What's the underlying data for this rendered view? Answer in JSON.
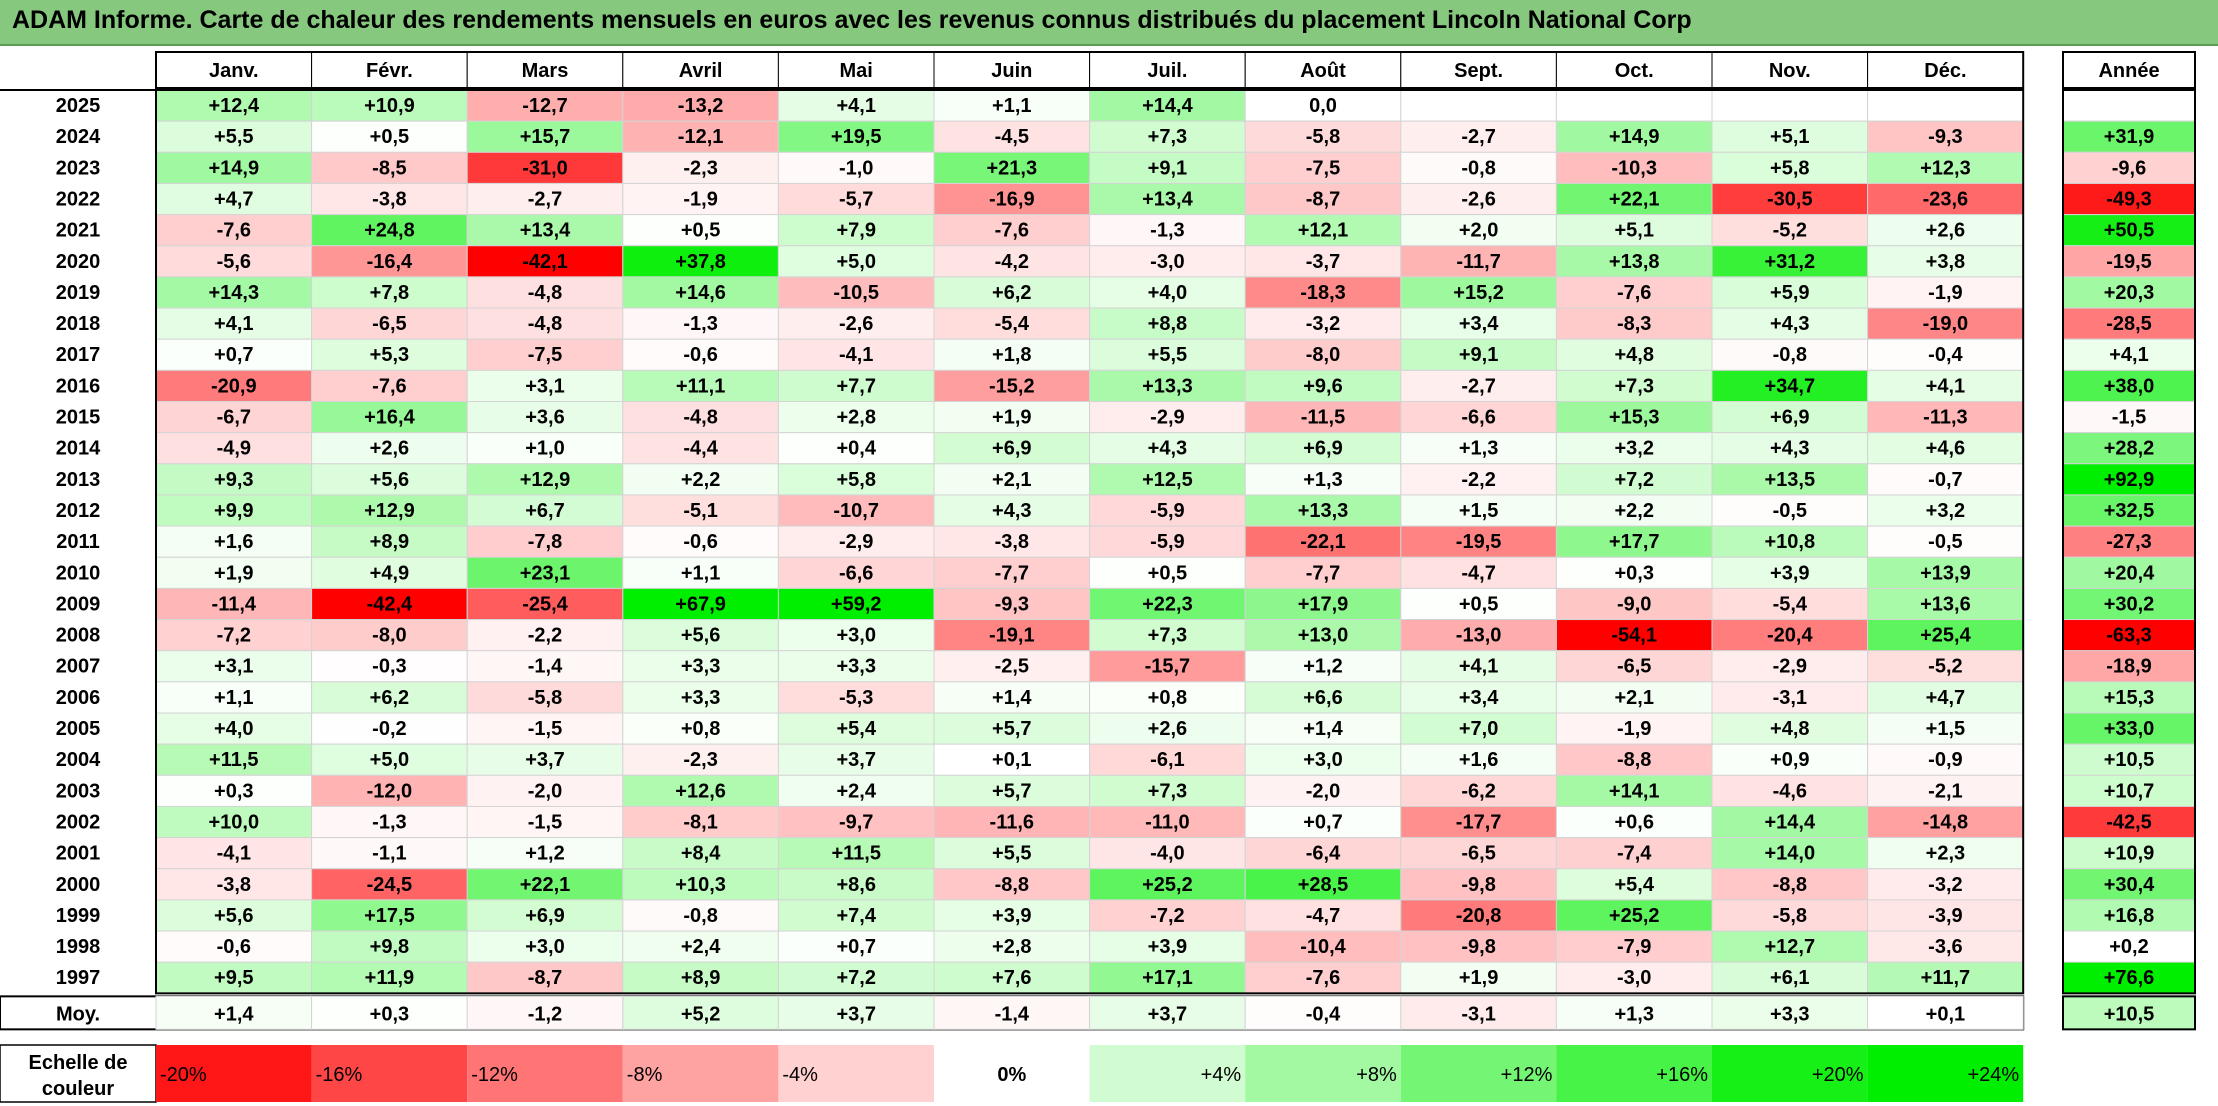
{
  "title": "ADAM Informe. Carte de chaleur des rendements mensuels en euros avec les revenus connus distribués du placement Lincoln National Corp",
  "colors": {
    "title_background": "#86c97e",
    "strong_negative": "#ff0000",
    "neutral": "#ffffff",
    "strong_positive": "#00ee00"
  },
  "chart_data": {
    "type": "heatmap",
    "months": [
      "Janv.",
      "Févr.",
      "Mars",
      "Avril",
      "Mai",
      "Juin",
      "Juil.",
      "Août",
      "Sept.",
      "Oct.",
      "Nov.",
      "Déc."
    ],
    "year_header": "Année",
    "average_label": "Moy.",
    "rows": [
      {
        "year": "2025",
        "values": [
          12.4,
          10.9,
          -12.7,
          -13.2,
          4.1,
          1.1,
          14.4,
          0.0,
          null,
          null,
          null,
          null
        ],
        "annual": null
      },
      {
        "year": "2024",
        "values": [
          5.5,
          0.5,
          15.7,
          -12.1,
          19.5,
          -4.5,
          7.3,
          -5.8,
          -2.7,
          14.9,
          5.1,
          -9.3
        ],
        "annual": 31.9
      },
      {
        "year": "2023",
        "values": [
          14.9,
          -8.5,
          -31.0,
          -2.3,
          -1.0,
          21.3,
          9.1,
          -7.5,
          -0.8,
          -10.3,
          5.8,
          12.3
        ],
        "annual": -9.6
      },
      {
        "year": "2022",
        "values": [
          4.7,
          -3.8,
          -2.7,
          -1.9,
          -5.7,
          -16.9,
          13.4,
          -8.7,
          -2.6,
          22.1,
          -30.5,
          -23.6
        ],
        "annual": -49.3
      },
      {
        "year": "2021",
        "values": [
          -7.6,
          24.8,
          13.4,
          0.5,
          7.9,
          -7.6,
          -1.3,
          12.1,
          2.0,
          5.1,
          -5.2,
          2.6
        ],
        "annual": 50.5
      },
      {
        "year": "2020",
        "values": [
          -5.6,
          -16.4,
          -42.1,
          37.8,
          5.0,
          -4.2,
          -3.0,
          -3.7,
          -11.7,
          13.8,
          31.2,
          3.8
        ],
        "annual": -19.5
      },
      {
        "year": "2019",
        "values": [
          14.3,
          7.8,
          -4.8,
          14.6,
          -10.5,
          6.2,
          4.0,
          -18.3,
          15.2,
          -7.6,
          5.9,
          -1.9
        ],
        "annual": 20.3
      },
      {
        "year": "2018",
        "values": [
          4.1,
          -6.5,
          -4.8,
          -1.3,
          -2.6,
          -5.4,
          8.8,
          -3.2,
          3.4,
          -8.3,
          4.3,
          -19.0
        ],
        "annual": -28.5
      },
      {
        "year": "2017",
        "values": [
          0.7,
          5.3,
          -7.5,
          -0.6,
          -4.1,
          1.8,
          5.5,
          -8.0,
          9.1,
          4.8,
          -0.8,
          -0.4
        ],
        "annual": 4.1
      },
      {
        "year": "2016",
        "values": [
          -20.9,
          -7.6,
          3.1,
          11.1,
          7.7,
          -15.2,
          13.3,
          9.6,
          -2.7,
          7.3,
          34.7,
          4.1
        ],
        "annual": 38.0
      },
      {
        "year": "2015",
        "values": [
          -6.7,
          16.4,
          3.6,
          -4.8,
          2.8,
          1.9,
          -2.9,
          -11.5,
          -6.6,
          15.3,
          6.9,
          -11.3
        ],
        "annual": -1.5
      },
      {
        "year": "2014",
        "values": [
          -4.9,
          2.6,
          1.0,
          -4.4,
          0.4,
          6.9,
          4.3,
          6.9,
          1.3,
          3.2,
          4.3,
          4.6
        ],
        "annual": 28.2
      },
      {
        "year": "2013",
        "values": [
          9.3,
          5.6,
          12.9,
          2.2,
          5.8,
          2.1,
          12.5,
          1.3,
          -2.2,
          7.2,
          13.5,
          -0.7
        ],
        "annual": 92.9
      },
      {
        "year": "2012",
        "values": [
          9.9,
          12.9,
          6.7,
          -5.1,
          -10.7,
          4.3,
          -5.9,
          13.3,
          1.5,
          2.2,
          -0.5,
          3.2
        ],
        "annual": 32.5
      },
      {
        "year": "2011",
        "values": [
          1.6,
          8.9,
          -7.8,
          -0.6,
          -2.9,
          -3.8,
          -5.9,
          -22.1,
          -19.5,
          17.7,
          10.8,
          -0.5
        ],
        "annual": -27.3
      },
      {
        "year": "2010",
        "values": [
          1.9,
          4.9,
          23.1,
          1.1,
          -6.6,
          -7.7,
          0.5,
          -7.7,
          -4.7,
          0.3,
          3.9,
          13.9
        ],
        "annual": 20.4
      },
      {
        "year": "2009",
        "values": [
          -11.4,
          -42.4,
          -25.4,
          67.9,
          59.2,
          -9.3,
          22.3,
          17.9,
          0.5,
          -9.0,
          -5.4,
          13.6
        ],
        "annual": 30.2
      },
      {
        "year": "2008",
        "values": [
          -7.2,
          -8.0,
          -2.2,
          5.6,
          3.0,
          -19.1,
          7.3,
          13.0,
          -13.0,
          -54.1,
          -20.4,
          25.4
        ],
        "annual": -63.3
      },
      {
        "year": "2007",
        "values": [
          3.1,
          -0.3,
          -1.4,
          3.3,
          3.3,
          -2.5,
          -15.7,
          1.2,
          4.1,
          -6.5,
          -2.9,
          -5.2
        ],
        "annual": -18.9
      },
      {
        "year": "2006",
        "values": [
          1.1,
          6.2,
          -5.8,
          3.3,
          -5.3,
          1.4,
          0.8,
          6.6,
          3.4,
          2.1,
          -3.1,
          4.7
        ],
        "annual": 15.3
      },
      {
        "year": "2005",
        "values": [
          4.0,
          -0.2,
          -1.5,
          0.8,
          5.4,
          5.7,
          2.6,
          1.4,
          7.0,
          -1.9,
          4.8,
          1.5
        ],
        "annual": 33.0
      },
      {
        "year": "2004",
        "values": [
          11.5,
          5.0,
          3.7,
          -2.3,
          3.7,
          0.1,
          -6.1,
          3.0,
          1.6,
          -8.8,
          0.9,
          -0.9
        ],
        "annual": 10.5
      },
      {
        "year": "2003",
        "values": [
          0.3,
          -12.0,
          -2.0,
          12.6,
          2.4,
          5.7,
          7.3,
          -2.0,
          -6.2,
          14.1,
          -4.6,
          -2.1
        ],
        "annual": 10.7
      },
      {
        "year": "2002",
        "values": [
          10.0,
          -1.3,
          -1.5,
          -8.1,
          -9.7,
          -11.6,
          -11.0,
          0.7,
          -17.7,
          0.6,
          14.4,
          -14.8
        ],
        "annual": -42.5
      },
      {
        "year": "2001",
        "values": [
          -4.1,
          -1.1,
          1.2,
          8.4,
          11.5,
          5.5,
          -4.0,
          -6.4,
          -6.5,
          -7.4,
          14.0,
          2.3
        ],
        "annual": 10.9
      },
      {
        "year": "2000",
        "values": [
          -3.8,
          -24.5,
          22.1,
          10.3,
          8.6,
          -8.8,
          25.2,
          28.5,
          -9.8,
          5.4,
          -8.8,
          -3.2
        ],
        "annual": 30.4
      },
      {
        "year": "1999",
        "values": [
          5.6,
          17.5,
          6.9,
          -0.8,
          7.4,
          3.9,
          -7.2,
          -4.7,
          -20.8,
          25.2,
          -5.8,
          -3.9
        ],
        "annual": 16.8
      },
      {
        "year": "1998",
        "values": [
          -0.6,
          9.8,
          3.0,
          2.4,
          0.7,
          2.8,
          3.9,
          -10.4,
          -9.8,
          -7.9,
          12.7,
          -3.6
        ],
        "annual": 0.2
      },
      {
        "year": "1997",
        "values": [
          9.5,
          11.9,
          -8.7,
          8.9,
          7.2,
          7.6,
          17.1,
          -7.6,
          1.9,
          -3.0,
          6.1,
          11.7
        ],
        "annual": 76.6
      }
    ],
    "average": {
      "values": [
        1.4,
        0.3,
        -1.2,
        5.2,
        3.7,
        -1.4,
        3.7,
        -0.4,
        -3.1,
        1.3,
        3.3,
        0.1
      ],
      "annual": 10.5
    },
    "scale": {
      "label_line1": "Echelle de",
      "label_line2": "couleur",
      "values": [
        -20,
        -16,
        -12,
        -8,
        -4,
        0,
        4,
        8,
        12,
        16,
        20,
        24
      ],
      "labels": [
        "-20%",
        "-16%",
        "-12%",
        "-8%",
        "-4%",
        "0%",
        "+4%",
        "+8%",
        "+12%",
        "+16%",
        "+20%",
        "+24%"
      ]
    }
  }
}
